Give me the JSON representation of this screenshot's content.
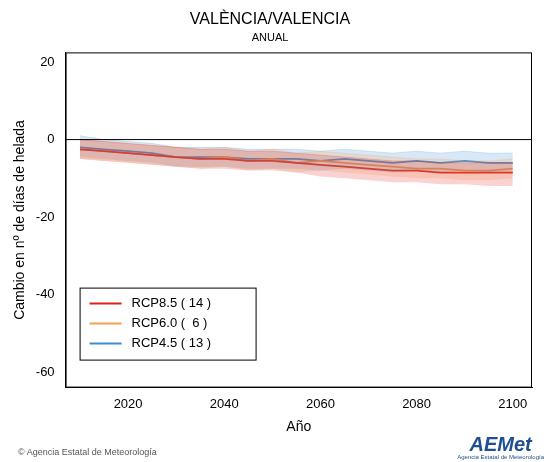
{
  "chart_data": {
    "type": "line",
    "title": "VALÈNCIA/VALENCIA",
    "subtitle": "ANUAL",
    "x_label": "Año",
    "y_label": "Cambio en nº de días de helada",
    "source": "© Agencia Estatal de Meteorología",
    "logo": {
      "name": "AEMet",
      "text": "Agencia Estatal de Meteorología"
    },
    "x": [
      2010,
      2015,
      2020,
      2025,
      2030,
      2035,
      2040,
      2045,
      2050,
      2055,
      2060,
      2065,
      2070,
      2075,
      2080,
      2085,
      2090,
      2095,
      2100
    ],
    "series": [
      {
        "name": "RCP8.5 ( 14 )",
        "color": "#e0201b",
        "values": [
          -2.5,
          -3,
          -3.5,
          -4,
          -4.5,
          -5,
          -5,
          -5.5,
          -5.5,
          -6,
          -6.5,
          -7,
          -7.5,
          -8,
          -8,
          -8.5,
          -8.5,
          -8.5,
          -8.5
        ],
        "lower": [
          -5,
          -5.5,
          -6,
          -6.5,
          -7,
          -7.5,
          -7.5,
          -8,
          -8,
          -8.5,
          -9.5,
          -10,
          -10.5,
          -11,
          -11,
          -11.5,
          -11.5,
          -12,
          -12
        ],
        "upper": [
          0,
          -0.5,
          -1,
          -1.5,
          -2,
          -2.5,
          -2.5,
          -3,
          -3,
          -3.5,
          -4,
          -4.5,
          -5,
          -5.5,
          -5.5,
          -6,
          -6,
          -6,
          -6
        ]
      },
      {
        "name": "RCP6.0 (  6 )",
        "color": "#f5a04f",
        "values": [
          -2.5,
          -3,
          -3.5,
          -4,
          -4.5,
          -5,
          -4.5,
          -5.5,
          -5,
          -6,
          -5.5,
          -6,
          -6.5,
          -7,
          -7.5,
          -7.5,
          -8,
          -8,
          -7.5
        ],
        "lower": [
          -5,
          -5.5,
          -6,
          -6.5,
          -7,
          -7.5,
          -7,
          -8,
          -7.5,
          -8.5,
          -8,
          -8.5,
          -9,
          -9.5,
          -10,
          -10,
          -10.5,
          -10.5,
          -10
        ],
        "upper": [
          0,
          -0.5,
          -1,
          -1.5,
          -2,
          -2.5,
          -2,
          -3,
          -2.5,
          -3.5,
          -3,
          -3.5,
          -4,
          -4.5,
          -5,
          -5,
          -5.5,
          -5.5,
          -5
        ]
      },
      {
        "name": "RCP4.5 ( 13 )",
        "color": "#3b8bd6",
        "values": [
          -2,
          -2.5,
          -3,
          -3.5,
          -4.5,
          -4.5,
          -4.5,
          -5,
          -5,
          -5,
          -5.5,
          -5,
          -5.5,
          -6,
          -5.5,
          -6,
          -5.5,
          -6,
          -6
        ],
        "lower": [
          -4.5,
          -5,
          -5.5,
          -6,
          -7,
          -7,
          -7,
          -7.5,
          -7.5,
          -7.5,
          -8,
          -7.5,
          -8,
          -8.5,
          -8,
          -8.5,
          -8,
          -8.5,
          -8.5
        ],
        "upper": [
          1,
          0,
          -0.5,
          -1,
          -2,
          -2,
          -2,
          -2.5,
          -2.5,
          -2.5,
          -3,
          -2.5,
          -3,
          -3.5,
          -3,
          -3.5,
          -3,
          -3.5,
          -3.5
        ]
      }
    ],
    "reference_line": 0,
    "xlim": [
      2007,
      2104
    ],
    "xticks": [
      2020,
      2040,
      2060,
      2080,
      2100
    ],
    "ylim": [
      -64,
      22.5
    ],
    "yticks": [
      -60,
      -40,
      -20,
      0,
      20
    ],
    "grid": false,
    "legend": "bottom left"
  }
}
